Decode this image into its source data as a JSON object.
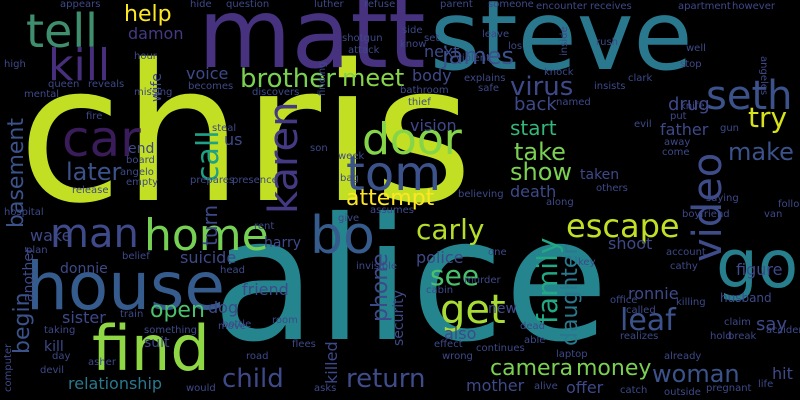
{
  "words": [
    {
      "text": "chris",
      "color": "#c2df23"
    },
    {
      "text": "alice",
      "color": "#25858e"
    },
    {
      "text": "steve",
      "color": "#2a788e"
    },
    {
      "text": "matt",
      "color": "#46327e"
    },
    {
      "text": "house",
      "color": "#365c8d"
    },
    {
      "text": "find",
      "color": "#8fd744"
    },
    {
      "text": "car",
      "color": "#3b1c5a"
    },
    {
      "text": "tell",
      "color": "#3f8f6f"
    },
    {
      "text": "kill",
      "color": "#472f7d"
    },
    {
      "text": "bo",
      "color": "#365c8d"
    },
    {
      "text": "home",
      "color": "#75d054"
    },
    {
      "text": "man",
      "color": "#3e4a89"
    },
    {
      "text": "seth",
      "color": "#3b528b"
    },
    {
      "text": "door",
      "color": "#86d549"
    },
    {
      "text": "tom",
      "color": "#3b528b"
    },
    {
      "text": "karen",
      "color": "#443a83"
    },
    {
      "text": "video",
      "color": "#3e4c8a"
    },
    {
      "text": "go",
      "color": "#277f8e"
    },
    {
      "text": "get",
      "color": "#a8db34"
    },
    {
      "text": "escape",
      "color": "#c0df25"
    },
    {
      "text": "brother",
      "color": "#7ad151"
    },
    {
      "text": "meet",
      "color": "#86d549"
    },
    {
      "text": "james",
      "color": "#3b528b"
    },
    {
      "text": "virus",
      "color": "#3e4989"
    },
    {
      "text": "try",
      "color": "#d8e219"
    },
    {
      "text": "make",
      "color": "#3b528b"
    },
    {
      "text": "call",
      "color": "#1fa187"
    },
    {
      "text": "take",
      "color": "#7ad151"
    },
    {
      "text": "show",
      "color": "#7ad151"
    },
    {
      "text": "later",
      "color": "#3b528b"
    },
    {
      "text": "attempt",
      "color": "#fde725"
    },
    {
      "text": "carly",
      "color": "#b5de2b"
    },
    {
      "text": "help",
      "color": "#fde725"
    },
    {
      "text": "basement",
      "color": "#3b528b"
    },
    {
      "text": "turn",
      "color": "#3e4989"
    },
    {
      "text": "phone",
      "color": "#3e4989"
    },
    {
      "text": "family",
      "color": "#22a884"
    },
    {
      "text": "daughter",
      "color": "#2a788e"
    },
    {
      "text": "see",
      "color": "#4ac16d"
    },
    {
      "text": "open",
      "color": "#4ac16d"
    },
    {
      "text": "leaf",
      "color": "#3b528b"
    },
    {
      "text": "child",
      "color": "#3e4989"
    },
    {
      "text": "return",
      "color": "#3e4c8a"
    },
    {
      "text": "camera",
      "color": "#7ad151"
    },
    {
      "text": "money",
      "color": "#7ad151"
    },
    {
      "text": "woman",
      "color": "#3b528b"
    },
    {
      "text": "begin",
      "color": "#3b528b"
    },
    {
      "text": "relationship",
      "color": "#2a788e"
    },
    {
      "text": "killed",
      "color": "#3e4989"
    },
    {
      "text": "start",
      "color": "#35b779"
    },
    {
      "text": "back",
      "color": "#3e4989"
    },
    {
      "text": "death",
      "color": "#3e4989"
    },
    {
      "text": "father",
      "color": "#3e4989"
    },
    {
      "text": "drug",
      "color": "#3e4989"
    },
    {
      "text": "vision",
      "color": "#3e4989"
    },
    {
      "text": "body",
      "color": "#3e4989"
    },
    {
      "text": "next",
      "color": "#3e4989"
    },
    {
      "text": "voice",
      "color": "#3e4989"
    },
    {
      "text": "damon",
      "color": "#443a83"
    },
    {
      "text": "wake",
      "color": "#3e4989"
    },
    {
      "text": "harry",
      "color": "#3e4989"
    },
    {
      "text": "suicide",
      "color": "#3e4989"
    },
    {
      "text": "friend",
      "color": "#3e4989"
    },
    {
      "text": "dog",
      "color": "#3e4989"
    },
    {
      "text": "police",
      "color": "#3e4989"
    },
    {
      "text": "security",
      "color": "#3e4989"
    },
    {
      "text": "shoot",
      "color": "#3e4989"
    },
    {
      "text": "figure",
      "color": "#3e4989"
    },
    {
      "text": "ronnie",
      "color": "#3e4989"
    },
    {
      "text": "donnie",
      "color": "#3e4989"
    },
    {
      "text": "another",
      "color": "#3e4989"
    },
    {
      "text": "sister",
      "color": "#3e4989"
    },
    {
      "text": "mother",
      "color": "#3e4989"
    },
    {
      "text": "say",
      "color": "#3e4989"
    },
    {
      "text": "also",
      "color": "#3e4989"
    },
    {
      "text": "new",
      "color": "#3e4989"
    },
    {
      "text": "taken",
      "color": "#3e4989"
    },
    {
      "text": "offer",
      "color": "#3e4989"
    },
    {
      "text": "wife",
      "color": "#3e4989"
    },
    {
      "text": "end",
      "color": "#3e4989"
    },
    {
      "text": "us",
      "color": "#3e4989"
    },
    {
      "text": "suit",
      "color": "#3e4989"
    },
    {
      "text": "hit",
      "color": "#3e4989"
    },
    {
      "text": "kill",
      "color": "#3e4989"
    },
    {
      "text": "husband",
      "color": "#3e4989"
    },
    {
      "text": "appears",
      "color": "#3e4989"
    },
    {
      "text": "question",
      "color": "#3e4989"
    },
    {
      "text": "luther",
      "color": "#3e4989"
    },
    {
      "text": "refuse",
      "color": "#3e4989"
    },
    {
      "text": "parent",
      "color": "#3e4989"
    },
    {
      "text": "someone",
      "color": "#3e4989"
    },
    {
      "text": "encounter",
      "color": "#3e4989"
    },
    {
      "text": "receives",
      "color": "#3e4989"
    },
    {
      "text": "apartment",
      "color": "#3e4989"
    },
    {
      "text": "however",
      "color": "#3e4989"
    },
    {
      "text": "shotgun",
      "color": "#3e4989"
    },
    {
      "text": "attack",
      "color": "#3e4989"
    },
    {
      "text": "know",
      "color": "#3e4989"
    },
    {
      "text": "set",
      "color": "#3e4989"
    },
    {
      "text": "leave",
      "color": "#3e4989"
    },
    {
      "text": "los",
      "color": "#3e4989"
    },
    {
      "text": "rush",
      "color": "#3e4989"
    },
    {
      "text": "well",
      "color": "#3e4989"
    },
    {
      "text": "stop",
      "color": "#3e4989"
    },
    {
      "text": "hour",
      "color": "#3e4989"
    },
    {
      "text": "queen",
      "color": "#3e4989"
    },
    {
      "text": "reveals",
      "color": "#3e4989"
    },
    {
      "text": "becomes",
      "color": "#3e4989"
    },
    {
      "text": "discovers",
      "color": "#3e4989"
    },
    {
      "text": "mental",
      "color": "#3e4989"
    },
    {
      "text": "fire",
      "color": "#3e4989"
    },
    {
      "text": "missing",
      "color": "#3e4989"
    },
    {
      "text": "explains",
      "color": "#3e4989"
    },
    {
      "text": "safe",
      "color": "#3e4989"
    },
    {
      "text": "bathroom",
      "color": "#3e4989"
    },
    {
      "text": "insists",
      "color": "#3e4989"
    },
    {
      "text": "knock",
      "color": "#3e4989"
    },
    {
      "text": "named",
      "color": "#3e4989"
    },
    {
      "text": "clark",
      "color": "#3e4989"
    },
    {
      "text": "knife",
      "color": "#3e4989"
    },
    {
      "text": "put",
      "color": "#3e4989"
    },
    {
      "text": "evil",
      "color": "#3e4989"
    },
    {
      "text": "steal",
      "color": "#3e4989"
    },
    {
      "text": "board",
      "color": "#3e4989"
    },
    {
      "text": "son",
      "color": "#3e4989"
    },
    {
      "text": "week",
      "color": "#3e4989"
    },
    {
      "text": "angelo",
      "color": "#3e4989"
    },
    {
      "text": "empty",
      "color": "#3e4989"
    },
    {
      "text": "release",
      "color": "#3e4989"
    },
    {
      "text": "prepares",
      "color": "#3e4989"
    },
    {
      "text": "presence",
      "color": "#3e4989"
    },
    {
      "text": "bag",
      "color": "#3e4989"
    },
    {
      "text": "believing",
      "color": "#3e4989"
    },
    {
      "text": "along",
      "color": "#3e4989"
    },
    {
      "text": "others",
      "color": "#3e4989"
    },
    {
      "text": "away",
      "color": "#3e4989"
    },
    {
      "text": "come",
      "color": "#3e4989"
    },
    {
      "text": "gun",
      "color": "#3e4989"
    },
    {
      "text": "saying",
      "color": "#3e4989"
    },
    {
      "text": "following",
      "color": "#3e4989"
    },
    {
      "text": "boyfriend",
      "color": "#3e4989"
    },
    {
      "text": "van",
      "color": "#3e4989"
    },
    {
      "text": "hospital",
      "color": "#3e4989"
    },
    {
      "text": "plan",
      "color": "#3e4989"
    },
    {
      "text": "give",
      "color": "#3e4989"
    },
    {
      "text": "assumes",
      "color": "#3e4989"
    },
    {
      "text": "rent",
      "color": "#3e4989"
    },
    {
      "text": "belief",
      "color": "#3e4989"
    },
    {
      "text": "head",
      "color": "#3e4989"
    },
    {
      "text": "invisible",
      "color": "#3e4989"
    },
    {
      "text": "one",
      "color": "#3e4989"
    },
    {
      "text": "key",
      "color": "#3e4989"
    },
    {
      "text": "account",
      "color": "#3e4989"
    },
    {
      "text": "cathy",
      "color": "#3e4989"
    },
    {
      "text": "bottle",
      "color": "#3e4989"
    },
    {
      "text": "murder",
      "color": "#3e4989"
    },
    {
      "text": "cabin",
      "color": "#3e4989"
    },
    {
      "text": "office",
      "color": "#3e4989"
    },
    {
      "text": "killing",
      "color": "#3e4989"
    },
    {
      "text": "called",
      "color": "#3e4989"
    },
    {
      "text": "claim",
      "color": "#3e4989"
    },
    {
      "text": "accidentally",
      "color": "#3e4989"
    },
    {
      "text": "train",
      "color": "#3e4989"
    },
    {
      "text": "taking",
      "color": "#3e4989"
    },
    {
      "text": "something",
      "color": "#3e4989"
    },
    {
      "text": "move",
      "color": "#3e4989"
    },
    {
      "text": "room",
      "color": "#3e4989"
    },
    {
      "text": "flees",
      "color": "#3e4989"
    },
    {
      "text": "effect",
      "color": "#3e4989"
    },
    {
      "text": "wrong",
      "color": "#3e4989"
    },
    {
      "text": "continues",
      "color": "#3e4989"
    },
    {
      "text": "able",
      "color": "#3e4989"
    },
    {
      "text": "dead",
      "color": "#3e4989"
    },
    {
      "text": "realizes",
      "color": "#3e4989"
    },
    {
      "text": "hold",
      "color": "#3e4989"
    },
    {
      "text": "break",
      "color": "#3e4989"
    },
    {
      "text": "laptop",
      "color": "#3e4989"
    },
    {
      "text": "already",
      "color": "#3e4989"
    },
    {
      "text": "life",
      "color": "#3e4989"
    },
    {
      "text": "computer",
      "color": "#3e4989"
    },
    {
      "text": "devil",
      "color": "#3e4989"
    },
    {
      "text": "day",
      "color": "#3e4989"
    },
    {
      "text": "asher",
      "color": "#3e4989"
    },
    {
      "text": "would",
      "color": "#3e4989"
    },
    {
      "text": "road",
      "color": "#3e4989"
    },
    {
      "text": "asks",
      "color": "#3e4989"
    },
    {
      "text": "alive",
      "color": "#3e4989"
    },
    {
      "text": "catch",
      "color": "#3e4989"
    },
    {
      "text": "outside",
      "color": "#3e4989"
    },
    {
      "text": "pregnant",
      "color": "#3e4989"
    },
    {
      "text": "thief",
      "color": "#3e4989"
    },
    {
      "text": "violent",
      "color": "#3e4989"
    },
    {
      "text": "finding",
      "color": "#3e4989"
    },
    {
      "text": "side",
      "color": "#3e4989"
    },
    {
      "text": "inside",
      "color": "#3e4989"
    },
    {
      "text": "hide",
      "color": "#3e4989"
    },
    {
      "text": "high",
      "color": "#3e4989"
    },
    {
      "text": "angeles",
      "color": "#3e4989"
    }
  ]
}
